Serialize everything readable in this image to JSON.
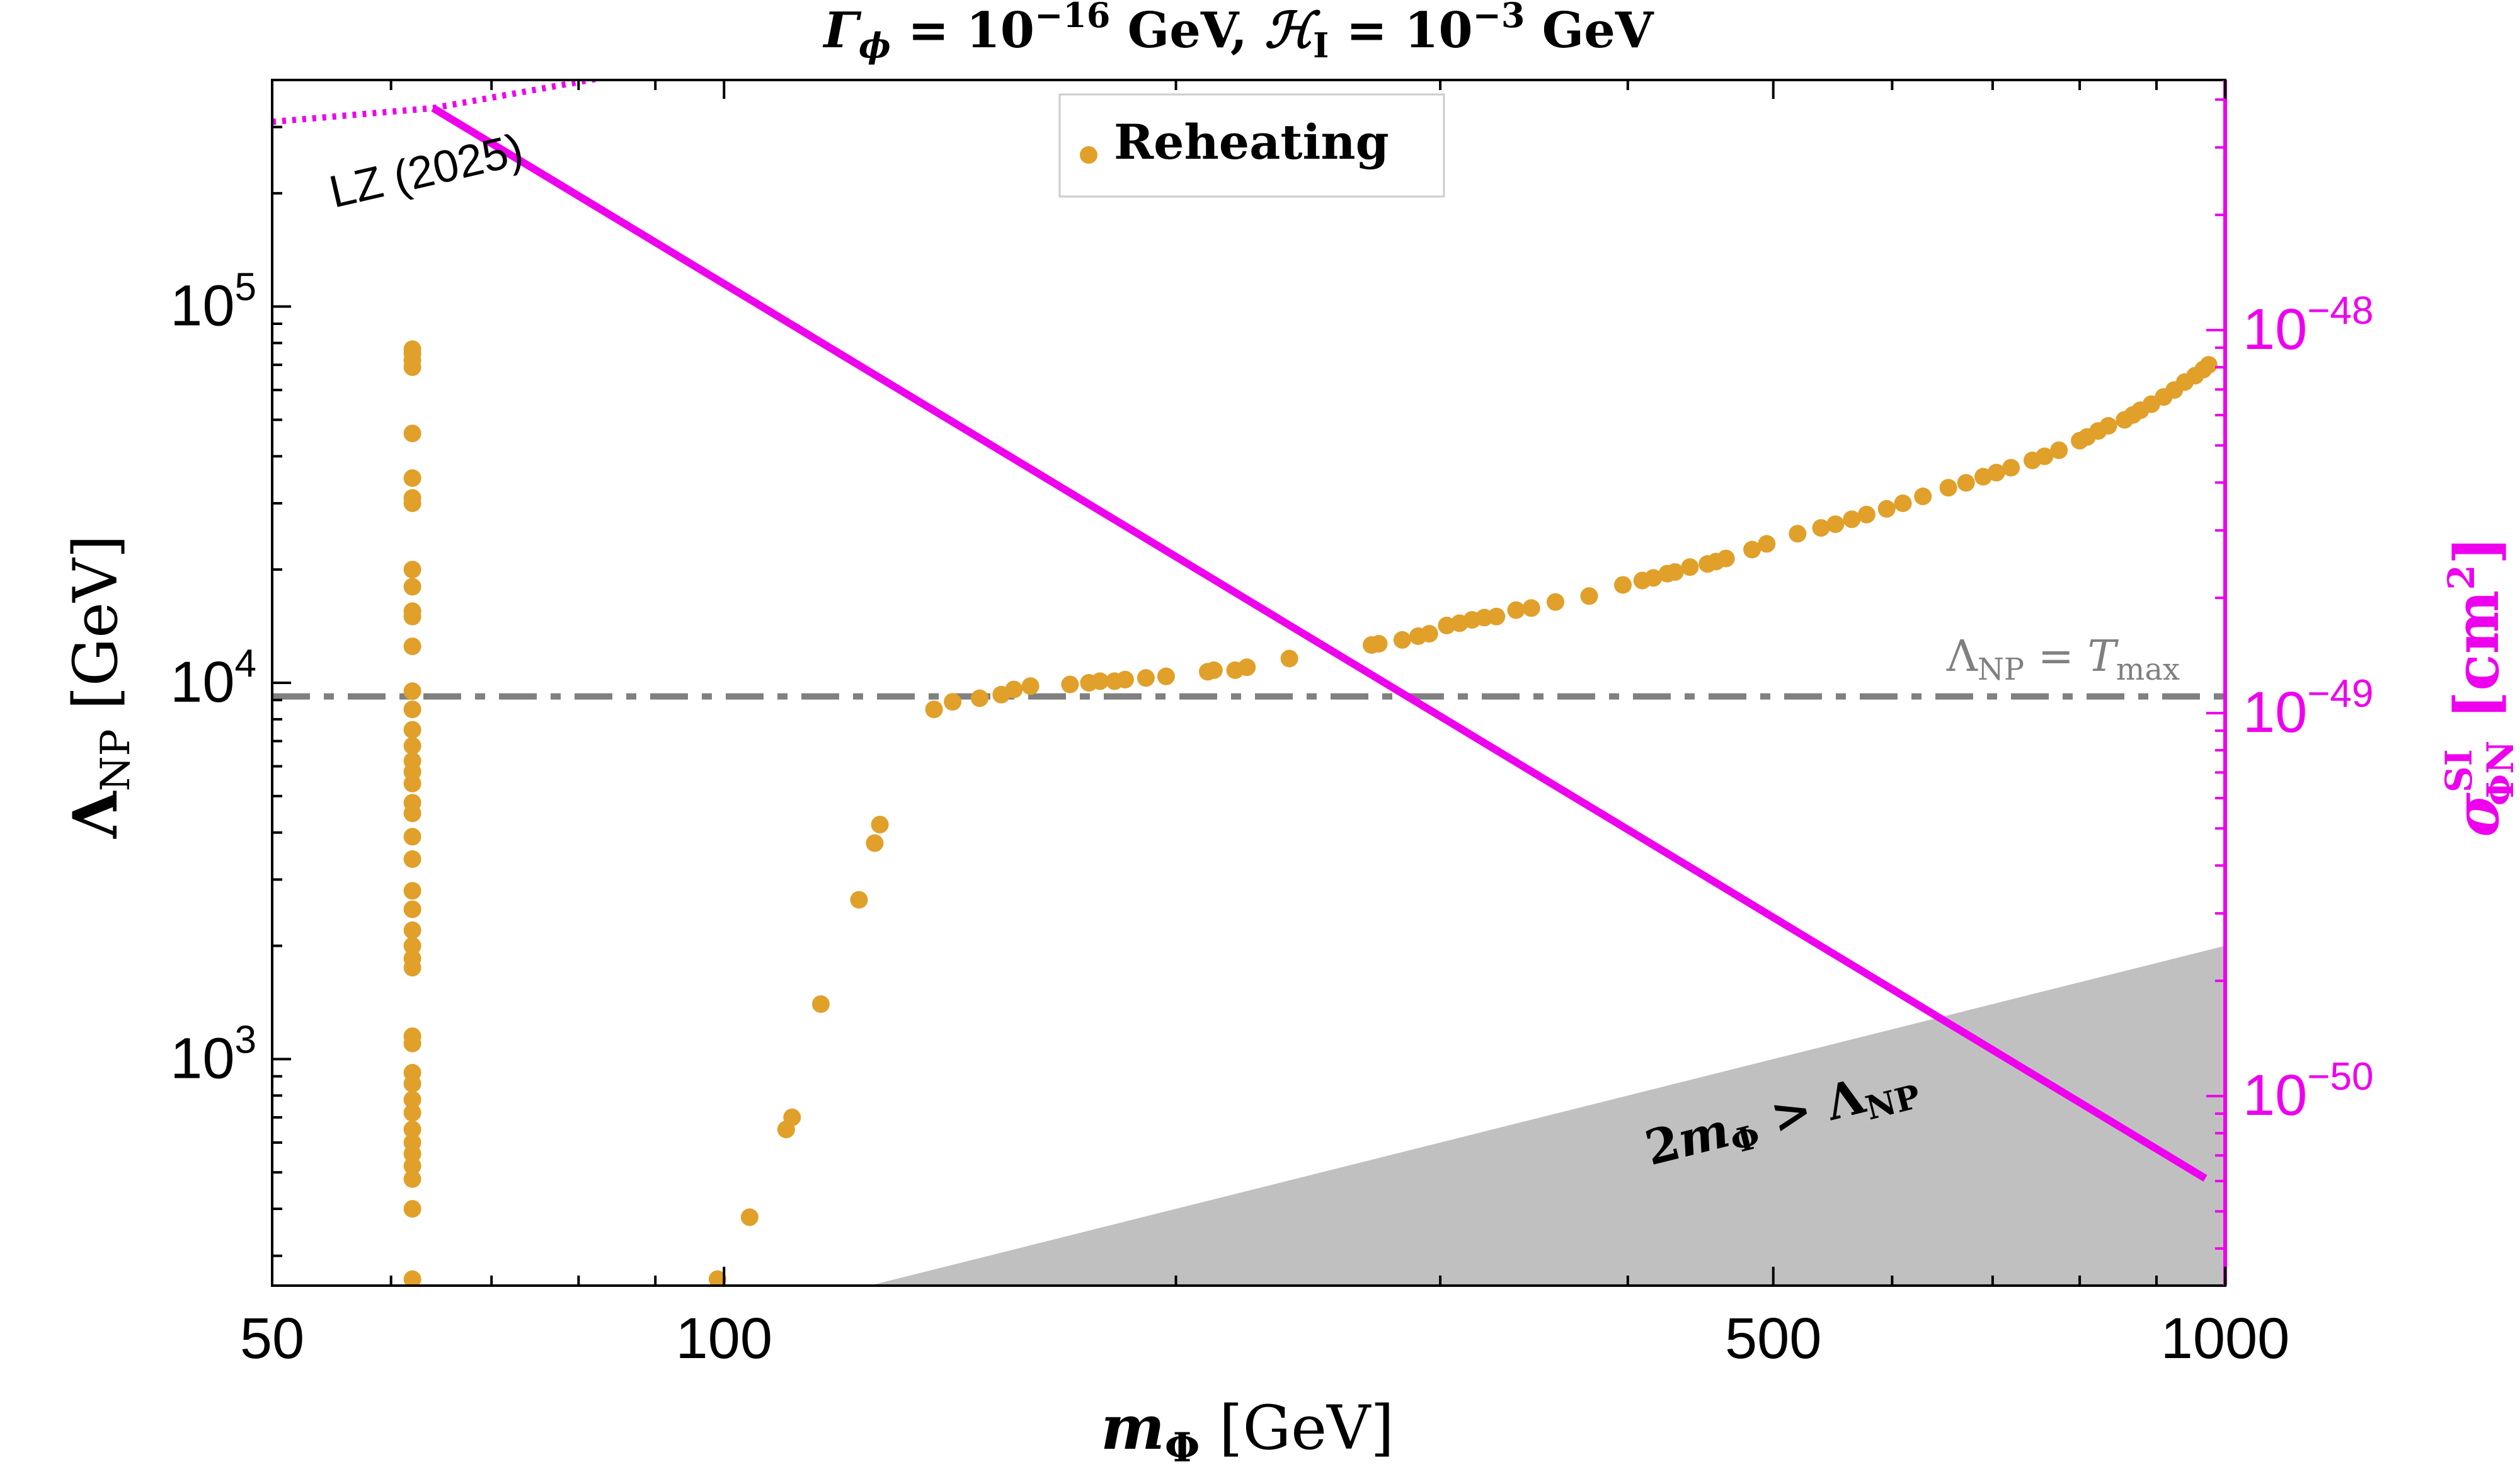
{
  "chart_data": {
    "type": "scatter",
    "title": "Γ_ϕ = 10^−16 GeV, ℋ_I = 10^−3 GeV",
    "xlabel": "m_Φ [GeV]",
    "ylabel": "Λ_NP [GeV]",
    "y2label": "σ^SI_ΦN [cm^2]",
    "x_scale": "log",
    "y_scale": "log",
    "y2_scale": "log",
    "xlim": [
      50,
      1000
    ],
    "ylim": [
      250,
      400000
    ],
    "y2lim": [
      3.2e-51,
      4.5e-48
    ],
    "x_ticks": [
      50,
      100,
      500,
      1000
    ],
    "x_tick_labels": [
      "50",
      "100",
      "500",
      "1000"
    ],
    "y_ticks": [
      1000,
      10000,
      100000
    ],
    "y_tick_labels": [
      {
        "base": "10",
        "exp": "3"
      },
      {
        "base": "10",
        "exp": "4"
      },
      {
        "base": "10",
        "exp": "5"
      }
    ],
    "y2_ticks": [
      1e-50,
      1e-49,
      1e-48
    ],
    "y2_tick_labels": [
      {
        "base": "10",
        "exp": "−50"
      },
      {
        "base": "10",
        "exp": "−49"
      },
      {
        "base": "10",
        "exp": "−48"
      }
    ],
    "grid": false,
    "legend": {
      "position": "top-center",
      "entries": [
        "Reheating"
      ]
    },
    "series": [
      {
        "name": "Reheating",
        "kind": "scatter",
        "color": "#E0A02A",
        "points": [
          [
            62,
            77000
          ],
          [
            62,
            75000
          ],
          [
            62,
            72000
          ],
          [
            62,
            69000
          ],
          [
            62,
            46000
          ],
          [
            62,
            35000
          ],
          [
            62,
            31000
          ],
          [
            62,
            30000
          ],
          [
            62,
            20000
          ],
          [
            62,
            18000
          ],
          [
            62,
            15500
          ],
          [
            62,
            15000
          ],
          [
            62,
            12500
          ],
          [
            62,
            9500
          ],
          [
            62,
            8500
          ],
          [
            62,
            7500
          ],
          [
            62,
            6800
          ],
          [
            62,
            6200
          ],
          [
            62,
            5800
          ],
          [
            62,
            5400
          ],
          [
            62,
            4800
          ],
          [
            62,
            4500
          ],
          [
            62,
            3900
          ],
          [
            62,
            3400
          ],
          [
            62,
            2800
          ],
          [
            62,
            2500
          ],
          [
            62,
            2200
          ],
          [
            62,
            2000
          ],
          [
            62,
            1850
          ],
          [
            62,
            1750
          ],
          [
            62,
            1150
          ],
          [
            62,
            1100
          ],
          [
            62,
            920
          ],
          [
            62,
            860
          ],
          [
            62,
            780
          ],
          [
            62,
            720
          ],
          [
            62,
            650
          ],
          [
            62,
            600
          ],
          [
            62,
            560
          ],
          [
            62,
            520
          ],
          [
            62,
            480
          ],
          [
            62,
            400
          ],
          [
            62,
            260
          ],
          [
            99,
            260
          ],
          [
            104,
            380
          ],
          [
            110,
            650
          ],
          [
            111,
            700
          ],
          [
            116,
            1400
          ],
          [
            123,
            2650
          ],
          [
            126,
            3750
          ],
          [
            127,
            4200
          ],
          [
            138,
            8500
          ],
          [
            142,
            8900
          ],
          [
            148,
            9100
          ],
          [
            153,
            9300
          ],
          [
            156,
            9600
          ],
          [
            160,
            9800
          ],
          [
            170,
            9900
          ],
          [
            175,
            10000
          ],
          [
            178,
            10100
          ],
          [
            182,
            10100
          ],
          [
            185,
            10200
          ],
          [
            191,
            10300
          ],
          [
            197,
            10400
          ],
          [
            210,
            10700
          ],
          [
            212,
            10800
          ],
          [
            219,
            10800
          ],
          [
            223,
            11000
          ],
          [
            238,
            11600
          ],
          [
            270,
            12600
          ],
          [
            273,
            12700
          ],
          [
            283,
            13000
          ],
          [
            290,
            13300
          ],
          [
            295,
            13500
          ],
          [
            303,
            14200
          ],
          [
            309,
            14400
          ],
          [
            315,
            14700
          ],
          [
            321,
            14900
          ],
          [
            327,
            15000
          ],
          [
            337,
            15600
          ],
          [
            345,
            15800
          ],
          [
            358,
            16400
          ],
          [
            377,
            17000
          ],
          [
            397,
            18200
          ],
          [
            409,
            18700
          ],
          [
            416,
            19000
          ],
          [
            425,
            19500
          ],
          [
            430,
            19700
          ],
          [
            440,
            20300
          ],
          [
            452,
            20700
          ],
          [
            458,
            21000
          ],
          [
            465,
            21400
          ],
          [
            484,
            22600
          ],
          [
            495,
            23400
          ],
          [
            519,
            24900
          ],
          [
            538,
            25800
          ],
          [
            550,
            26400
          ],
          [
            564,
            27200
          ],
          [
            577,
            28000
          ],
          [
            595,
            29000
          ],
          [
            610,
            30000
          ],
          [
            629,
            31300
          ],
          [
            654,
            33000
          ],
          [
            672,
            34000
          ],
          [
            690,
            35300
          ],
          [
            704,
            36200
          ],
          [
            720,
            37300
          ],
          [
            744,
            39000
          ],
          [
            758,
            40000
          ],
          [
            775,
            41500
          ],
          [
            800,
            44000
          ],
          [
            809,
            45000
          ],
          [
            823,
            46700
          ],
          [
            836,
            48200
          ],
          [
            857,
            50000
          ],
          [
            868,
            51500
          ],
          [
            878,
            53000
          ],
          [
            893,
            55000
          ],
          [
            910,
            57500
          ],
          [
            925,
            60000
          ],
          [
            940,
            63000
          ],
          [
            955,
            65500
          ],
          [
            967,
            68000
          ],
          [
            975,
            70000
          ]
        ]
      },
      {
        "name": "σ^SI_ΦN",
        "kind": "line",
        "axis": "right",
        "color": "#EE00EE",
        "x": [
          64,
          970
        ],
        "y2": [
          3.8e-48,
          6.1e-51
        ]
      },
      {
        "name": "LZ (2025)",
        "kind": "dotted-line",
        "axis": "right",
        "color": "#EE00EE",
        "x": [
          50,
          64,
          100
        ],
        "y2": [
          3.5e-48,
          3.8e-48,
          5.2e-48
        ]
      }
    ],
    "hlines": [
      {
        "name": "Λ_NP = T_max",
        "y": 9200,
        "style": "dash-dot",
        "color": "#808080"
      }
    ],
    "regions": [
      {
        "name": "2m_Φ > Λ_NP",
        "color": "#C0C0C0",
        "polygon": [
          [
            125,
            250
          ],
          [
            1000,
            2000
          ],
          [
            1000,
            250
          ]
        ]
      }
    ],
    "annotations": {
      "lz_label": "LZ (2025)",
      "tmax_lhs": "Λ",
      "tmax_lhs_sub": "NP",
      "tmax_eq": " = ",
      "tmax_rhs": "T",
      "tmax_rhs_sub": "max",
      "region_a": "2",
      "region_m": "m",
      "region_m_sub": "Φ",
      "region_gt": " > ",
      "region_L": "Λ",
      "region_L_sub": "NP"
    },
    "title_parts": {
      "gamma": "Γ",
      "gamma_sub": "ϕ",
      "eq1": " = 10",
      "exp1": "−16",
      "unit1": " GeV, ",
      "H": "ℋ",
      "H_sub": "I",
      "eq2": " = 10",
      "exp2": "−3",
      "unit2": " GeV"
    },
    "xlabel_parts": {
      "m": "m",
      "sub": "Φ",
      "unit": " [GeV]"
    },
    "ylabel_parts": {
      "L": "Λ",
      "sub": "NP",
      "unit": " [GeV]"
    },
    "y2label_parts": {
      "s": "σ",
      "sup": "SI",
      "sub": "ΦN",
      "unit": " [cm",
      "unit_sup": "2",
      "unit_end": "]"
    }
  }
}
